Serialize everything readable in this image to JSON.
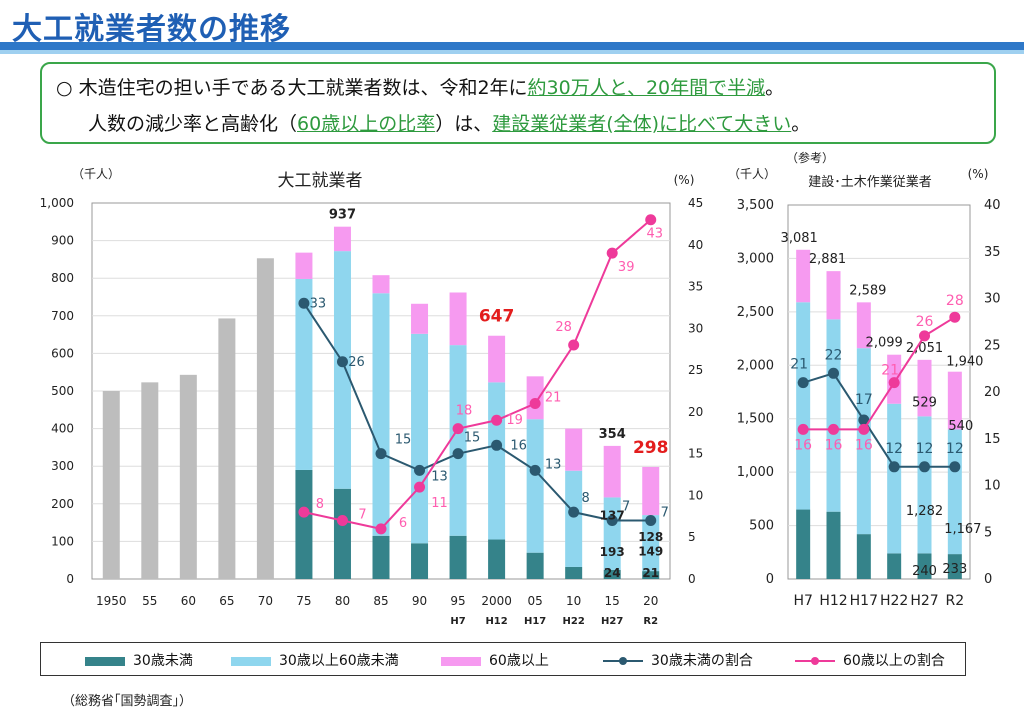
{
  "header": {
    "title": "大工就業者数の推移"
  },
  "summary": {
    "bullet": "○",
    "line1_a": "木造住宅の担い手である大工就業者数は、令和2年に",
    "line1_hl": "約30万人と、20年間で半減",
    "line1_b": "。",
    "line2_a": "人数の減少率と高齢化（",
    "line2_hl1": "60歳以上の比率",
    "line2_b": "）は、",
    "line2_hl2": "建設業従業者(全体)に比べて大きい",
    "line2_c": "。"
  },
  "colors": {
    "u30": "#35838a",
    "m30_60": "#8fd6ee",
    "o60": "#f69af0",
    "gray": "#bdbdbd",
    "u30_line": "#2b5970",
    "o60_line": "#ee3a9a",
    "red": "#e31d1d"
  },
  "chart_data": [
    {
      "type": "bar",
      "title": "大工就業者",
      "ylabel_left": "（千人）",
      "ylabel_right": "(%)",
      "ylim": [
        0,
        1000
      ],
      "ylim_right": [
        0,
        45
      ],
      "yticks_left": [
        "0",
        "100",
        "200",
        "300",
        "400",
        "500",
        "600",
        "700",
        "800",
        "900",
        "1,000"
      ],
      "yticks_right": [
        "0",
        "5",
        "10",
        "15",
        "20",
        "25",
        "30",
        "35",
        "40",
        "45"
      ],
      "categories": [
        "1950",
        "55",
        "60",
        "65",
        "70",
        "75",
        "80",
        "85",
        "90",
        "95",
        "2000",
        "05",
        "10",
        "15",
        "20"
      ],
      "sub_categories": [
        "",
        "",
        "",
        "",
        "",
        "",
        "",
        "",
        "",
        "H7",
        "H12",
        "H17",
        "H22",
        "H27",
        "R2"
      ],
      "totals_gray": [
        500,
        523,
        543,
        693,
        853,
        null,
        null,
        null,
        null,
        null,
        null,
        null,
        null,
        null,
        null
      ],
      "series": [
        {
          "name": "30歳未満",
          "values": [
            null,
            null,
            null,
            null,
            null,
            290,
            240,
            115,
            95,
            115,
            105,
            70,
            32,
            24,
            21
          ]
        },
        {
          "name": "30歳以上60歳未満",
          "values": [
            null,
            null,
            null,
            null,
            null,
            508,
            632,
            645,
            557,
            507,
            418,
            355,
            256,
            193,
            149
          ]
        },
        {
          "name": "60歳以上",
          "values": [
            null,
            null,
            null,
            null,
            null,
            70,
            65,
            48,
            80,
            140,
            124,
            114,
            112,
            137,
            128
          ]
        }
      ],
      "lines": [
        {
          "name": "30歳未満の割合",
          "values": [
            null,
            null,
            null,
            null,
            null,
            33,
            26,
            15,
            13,
            15,
            16,
            13,
            8,
            7,
            7
          ]
        },
        {
          "name": "60歳以上の割合",
          "values": [
            null,
            null,
            null,
            null,
            null,
            8,
            7,
            6,
            11,
            18,
            19,
            21,
            28,
            39,
            43
          ]
        }
      ],
      "annotations": [
        {
          "category": "80",
          "text": "937"
        },
        {
          "category": "2000",
          "text": "647"
        },
        {
          "category": "15",
          "text": "354"
        },
        {
          "category": "15",
          "text": "137"
        },
        {
          "category": "15",
          "text": "193"
        },
        {
          "category": "15",
          "text": "24"
        },
        {
          "category": "20",
          "text": "298"
        },
        {
          "category": "20",
          "text": "128"
        },
        {
          "category": "20",
          "text": "149"
        },
        {
          "category": "20",
          "text": "21"
        }
      ]
    },
    {
      "type": "bar",
      "title_note": "（参考）",
      "title": "建設･土木作業従業者",
      "ylabel_left": "（千人）",
      "ylabel_right": "(%)",
      "ylim": [
        0,
        3500
      ],
      "ylim_right": [
        0,
        40
      ],
      "yticks_left": [
        "0",
        "500",
        "1,000",
        "1,500",
        "2,000",
        "2,500",
        "3,000",
        "3,500"
      ],
      "yticks_right": [
        "0",
        "5",
        "10",
        "15",
        "20",
        "25",
        "30",
        "35",
        "40"
      ],
      "categories": [
        "H7",
        "H12",
        "H17",
        "H22",
        "H27",
        "R2"
      ],
      "series": [
        {
          "name": "30歳未満",
          "values": [
            650,
            630,
            420,
            240,
            240,
            233
          ]
        },
        {
          "name": "30歳以上60歳未満",
          "values": [
            1940,
            1800,
            1740,
            1400,
            1282,
            1167
          ]
        },
        {
          "name": "60歳以上",
          "values": [
            491,
            451,
            429,
            459,
            529,
            540
          ]
        }
      ],
      "totals": [
        "3,081",
        "2,881",
        "2,589",
        "2,099",
        "2,051",
        "1,940"
      ],
      "lines": [
        {
          "name": "30歳未満の割合",
          "values": [
            21,
            22,
            17,
            12,
            12,
            12
          ]
        },
        {
          "name": "60歳以上の割合",
          "values": [
            16,
            16,
            16,
            21,
            26,
            28
          ]
        }
      ],
      "annotations": [
        {
          "category": "H27",
          "text": "529"
        },
        {
          "category": "H27",
          "text": "1,282"
        },
        {
          "category": "H27",
          "text": "240"
        },
        {
          "category": "R2",
          "text": "540"
        },
        {
          "category": "R2",
          "text": "1,167"
        },
        {
          "category": "R2",
          "text": "233"
        }
      ]
    }
  ],
  "legend": [
    {
      "label": "30歳未満",
      "kind": "bar",
      "color": "#35838a"
    },
    {
      "label": "30歳以上60歳未満",
      "kind": "bar",
      "color": "#8fd6ee"
    },
    {
      "label": "60歳以上",
      "kind": "bar",
      "color": "#f69af0"
    },
    {
      "label": "30歳未満の割合",
      "kind": "line",
      "color": "#2b5970"
    },
    {
      "label": "60歳以上の割合",
      "kind": "line",
      "color": "#ee3a9a"
    }
  ],
  "source": "（総務省｢国勢調査｣）"
}
